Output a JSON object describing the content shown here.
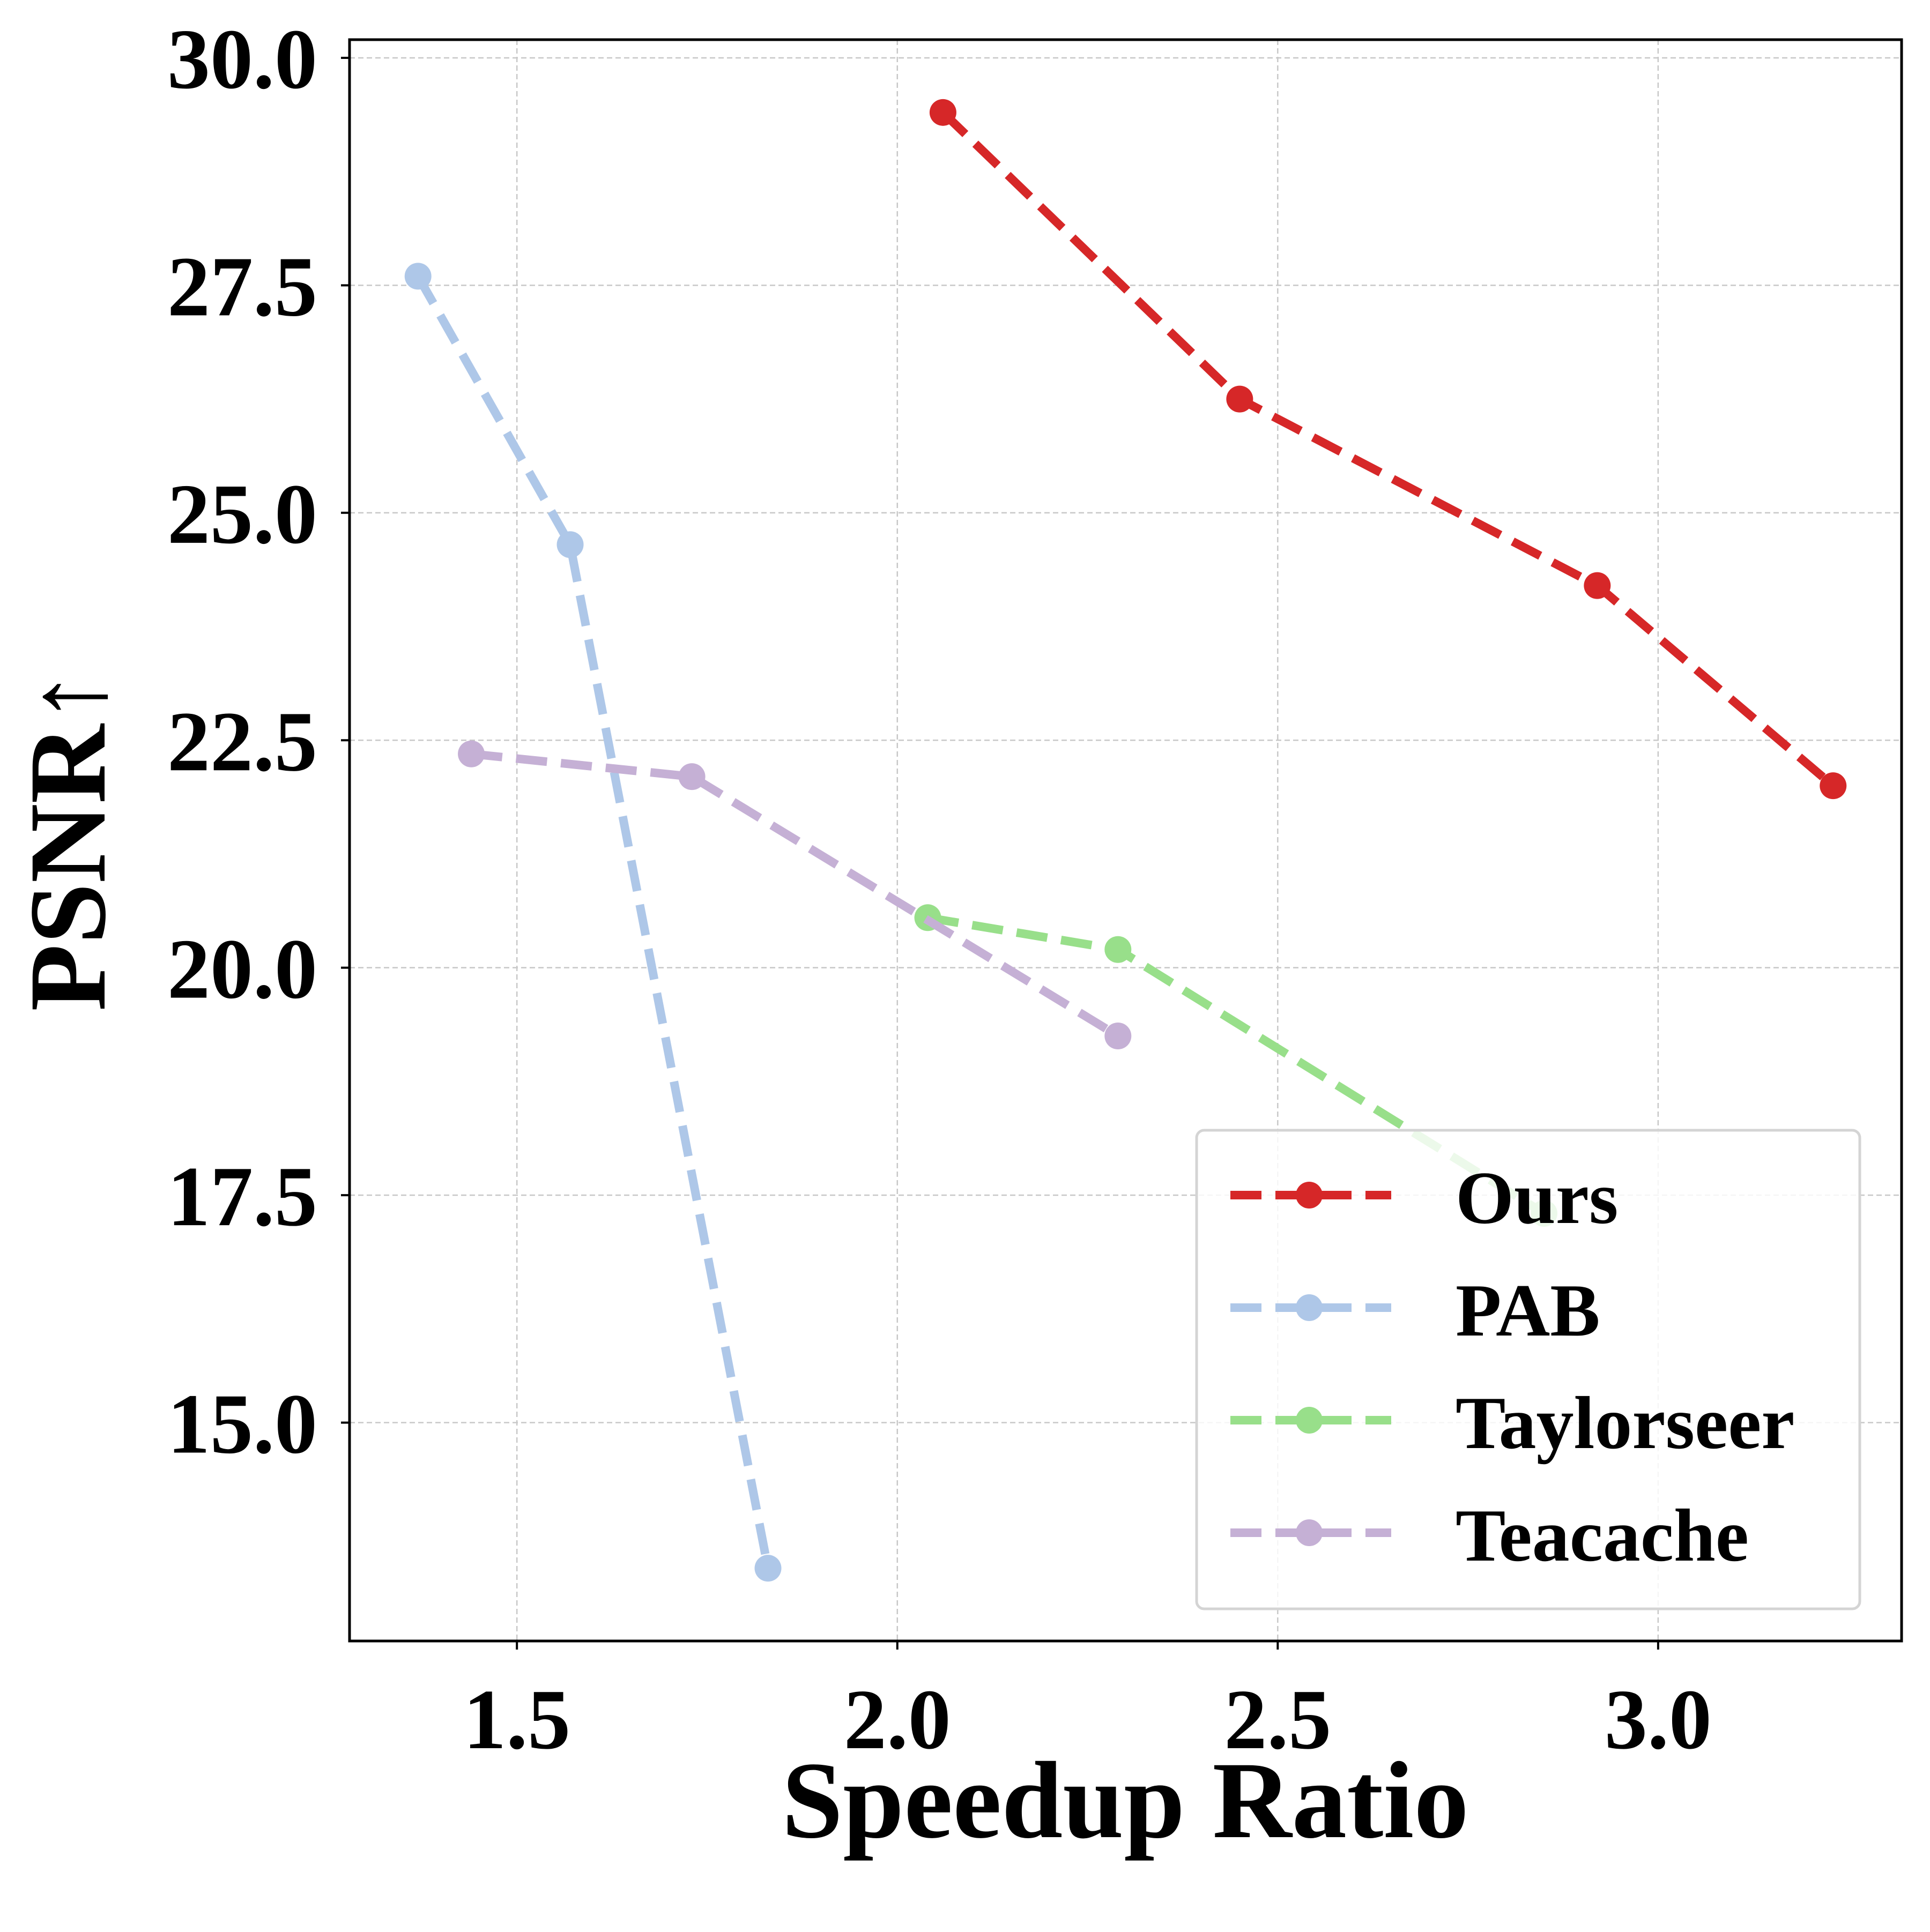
{
  "chart_data": {
    "type": "line",
    "title": "",
    "xlabel": "Speedup Ratio",
    "ylabel": "PSNR↑",
    "xlim": [
      1.28,
      3.32
    ],
    "ylim": [
      12.6,
      30.2
    ],
    "x_ticks": [
      1.5,
      2.0,
      2.5,
      3.0
    ],
    "x_tick_labels": [
      "1.5",
      "2.0",
      "2.5",
      "3.0"
    ],
    "y_ticks": [
      15.0,
      17.5,
      20.0,
      22.5,
      25.0,
      27.5,
      30.0
    ],
    "y_tick_labels": [
      "15.0",
      "17.5",
      "20.0",
      "22.5",
      "25.0",
      "27.5",
      "30.0"
    ],
    "grid": true,
    "legend_position": "bottom-right",
    "line_style": "dashed",
    "marker": "circle",
    "series": [
      {
        "name": "Ours",
        "color": "#d62728",
        "x": [
          2.06,
          2.45,
          2.92,
          3.23
        ],
        "y": [
          29.4,
          26.25,
          24.2,
          22.0
        ]
      },
      {
        "name": "PAB",
        "color": "#aec7e8",
        "x": [
          1.37,
          1.57,
          1.83
        ],
        "y": [
          27.6,
          24.65,
          13.4
        ]
      },
      {
        "name": "Taylorseer",
        "color": "#98df8a",
        "x": [
          2.04,
          2.29,
          2.85
        ],
        "y": [
          20.55,
          20.2,
          17.3
        ]
      },
      {
        "name": "Teacache",
        "color": "#c5b0d5",
        "x": [
          1.44,
          1.73,
          2.29
        ],
        "y": [
          22.35,
          22.1,
          19.25
        ]
      }
    ]
  }
}
